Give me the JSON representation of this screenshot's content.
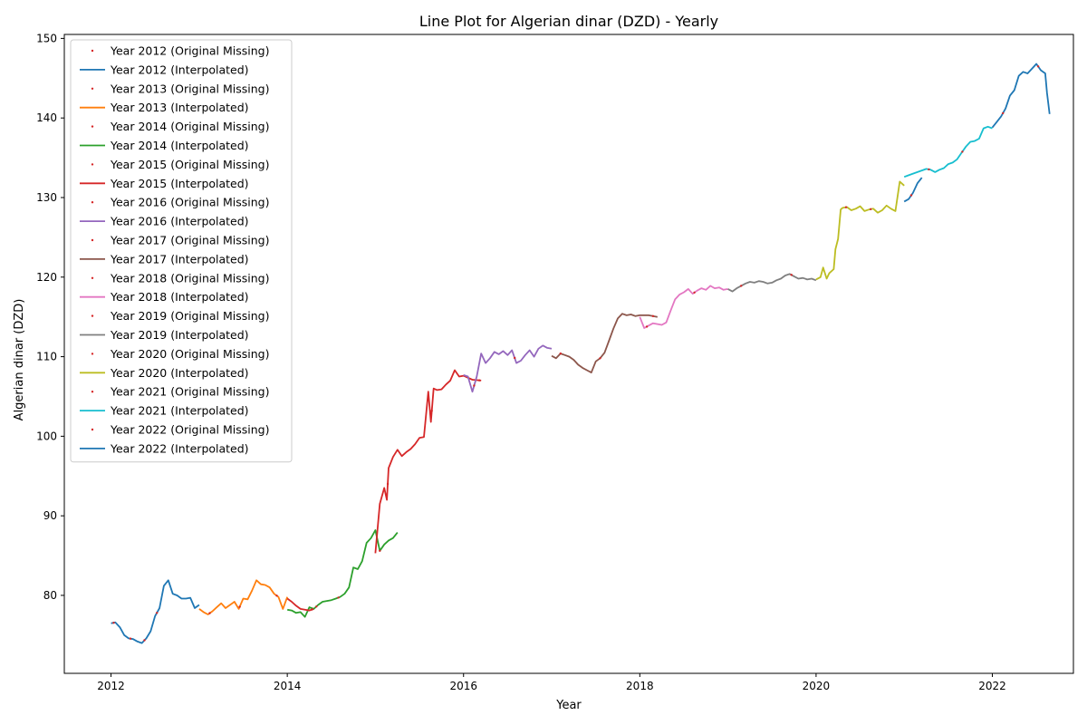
{
  "chart_data": {
    "type": "line",
    "title": "Line Plot for Algerian dinar (DZD) - Yearly",
    "xlabel": "Year",
    "ylabel": "Algerian dinar (DZD)",
    "xlim": [
      2011.47,
      2022.92
    ],
    "ylim": [
      70.2,
      150.5
    ],
    "xticks": [
      2012,
      2014,
      2016,
      2018,
      2020,
      2022
    ],
    "yticks": [
      80,
      90,
      100,
      110,
      120,
      130,
      140,
      150
    ],
    "legend_location": "upper-left",
    "missing_color": "#d62728",
    "series": [
      {
        "name": "Year 2012 (Interpolated)",
        "missing_label": "Year 2012 (Original Missing)",
        "color": "#1f77b4",
        "points": [
          [
            2012.0,
            76.5
          ],
          [
            2012.05,
            76.6
          ],
          [
            2012.1,
            76.0
          ],
          [
            2012.15,
            75.0
          ],
          [
            2012.2,
            74.6
          ],
          [
            2012.25,
            74.5
          ],
          [
            2012.3,
            74.2
          ],
          [
            2012.35,
            74.0
          ],
          [
            2012.4,
            74.6
          ],
          [
            2012.45,
            75.5
          ],
          [
            2012.5,
            77.4
          ],
          [
            2012.55,
            78.4
          ],
          [
            2012.6,
            81.2
          ],
          [
            2012.65,
            81.9
          ],
          [
            2012.7,
            80.2
          ],
          [
            2012.75,
            80.0
          ],
          [
            2012.8,
            79.6
          ],
          [
            2012.85,
            79.6
          ],
          [
            2012.9,
            79.7
          ],
          [
            2012.95,
            78.4
          ],
          [
            2013.0,
            78.8
          ]
        ],
        "missing_x": [
          2012.03,
          2012.22,
          2012.38,
          2012.52
        ]
      },
      {
        "name": "Year 2013 (Interpolated)",
        "missing_label": "Year 2013 (Original Missing)",
        "color": "#ff7f0e",
        "points": [
          [
            2013.0,
            78.3
          ],
          [
            2013.05,
            77.9
          ],
          [
            2013.1,
            77.6
          ],
          [
            2013.15,
            78.0
          ],
          [
            2013.2,
            78.5
          ],
          [
            2013.25,
            79.0
          ],
          [
            2013.3,
            78.4
          ],
          [
            2013.35,
            78.8
          ],
          [
            2013.4,
            79.2
          ],
          [
            2013.45,
            78.3
          ],
          [
            2013.5,
            79.6
          ],
          [
            2013.55,
            79.5
          ],
          [
            2013.6,
            80.6
          ],
          [
            2013.65,
            81.9
          ],
          [
            2013.7,
            81.4
          ],
          [
            2013.75,
            81.3
          ],
          [
            2013.8,
            81.0
          ],
          [
            2013.85,
            80.2
          ],
          [
            2013.9,
            79.8
          ],
          [
            2013.95,
            78.3
          ],
          [
            2014.0,
            79.8
          ]
        ],
        "missing_x": [
          2013.12,
          2013.46,
          2013.88
        ]
      },
      {
        "name": "Year 2014 (Interpolated)",
        "missing_label": "Year 2014 (Original Missing)",
        "color": "#2ca02c",
        "points": [
          [
            2014.0,
            78.2
          ],
          [
            2014.05,
            78.1
          ],
          [
            2014.1,
            77.8
          ],
          [
            2014.15,
            77.9
          ],
          [
            2014.2,
            77.3
          ],
          [
            2014.25,
            78.5
          ],
          [
            2014.3,
            78.3
          ],
          [
            2014.35,
            78.8
          ],
          [
            2014.4,
            79.2
          ],
          [
            2014.45,
            79.3
          ],
          [
            2014.5,
            79.4
          ],
          [
            2014.55,
            79.6
          ],
          [
            2014.6,
            79.8
          ],
          [
            2014.65,
            80.2
          ],
          [
            2014.7,
            81.0
          ],
          [
            2014.75,
            83.5
          ],
          [
            2014.8,
            83.3
          ],
          [
            2014.85,
            84.3
          ],
          [
            2014.9,
            86.6
          ],
          [
            2014.95,
            87.2
          ],
          [
            2015.0,
            88.2
          ],
          [
            2015.05,
            85.6
          ],
          [
            2015.1,
            86.4
          ],
          [
            2015.15,
            86.9
          ],
          [
            2015.2,
            87.2
          ],
          [
            2015.25,
            87.9
          ]
        ],
        "missing_x": [
          2014.33,
          2014.58,
          2015.05
        ]
      },
      {
        "name": "Year 2015 (Interpolated)",
        "missing_label": "Year 2015 (Original Missing)",
        "color": "#d62728",
        "points": [
          [
            2014.0,
            79.6
          ],
          [
            2014.05,
            79.2
          ],
          [
            2014.1,
            78.7
          ],
          [
            2014.15,
            78.3
          ],
          [
            2014.25,
            78.1
          ],
          [
            2014.3,
            78.3
          ],
          [
            2015.0,
            85.3
          ],
          [
            2015.05,
            91.5
          ],
          [
            2015.1,
            93.5
          ],
          [
            2015.13,
            92.0
          ],
          [
            2015.15,
            96.0
          ],
          [
            2015.2,
            97.4
          ],
          [
            2015.25,
            98.3
          ],
          [
            2015.3,
            97.5
          ],
          [
            2015.35,
            98.0
          ],
          [
            2015.4,
            98.4
          ],
          [
            2015.45,
            99.0
          ],
          [
            2015.5,
            99.8
          ],
          [
            2015.55,
            99.9
          ],
          [
            2015.6,
            105.6
          ],
          [
            2015.63,
            101.8
          ],
          [
            2015.66,
            106.0
          ],
          [
            2015.7,
            105.8
          ],
          [
            2015.75,
            105.9
          ],
          [
            2015.8,
            106.5
          ],
          [
            2015.85,
            107.0
          ],
          [
            2015.9,
            108.3
          ],
          [
            2015.95,
            107.5
          ],
          [
            2016.0,
            107.6
          ],
          [
            2016.1,
            107.1
          ],
          [
            2016.2,
            107.0
          ]
        ],
        "missing_x": [
          2014.28,
          2015.14,
          2015.64,
          2016.18
        ]
      },
      {
        "name": "Year 2016 (Interpolated)",
        "missing_label": "Year 2016 (Original Missing)",
        "color": "#9467bd",
        "points": [
          [
            2016.0,
            107.7
          ],
          [
            2016.05,
            107.5
          ],
          [
            2016.1,
            105.6
          ],
          [
            2016.15,
            107.5
          ],
          [
            2016.2,
            110.4
          ],
          [
            2016.25,
            109.2
          ],
          [
            2016.3,
            109.8
          ],
          [
            2016.35,
            110.6
          ],
          [
            2016.4,
            110.3
          ],
          [
            2016.45,
            110.7
          ],
          [
            2016.5,
            110.2
          ],
          [
            2016.55,
            110.8
          ],
          [
            2016.6,
            109.2
          ],
          [
            2016.65,
            109.5
          ],
          [
            2016.7,
            110.2
          ],
          [
            2016.75,
            110.8
          ],
          [
            2016.8,
            110.0
          ],
          [
            2016.85,
            111.0
          ],
          [
            2016.9,
            111.4
          ],
          [
            2016.95,
            111.1
          ],
          [
            2017.0,
            111.0
          ]
        ],
        "missing_x": [
          2016.12,
          2016.58
        ]
      },
      {
        "name": "Year 2017 (Interpolated)",
        "missing_label": "Year 2017 (Original Missing)",
        "color": "#8c564b",
        "points": [
          [
            2017.0,
            110.1
          ],
          [
            2017.05,
            109.8
          ],
          [
            2017.1,
            110.4
          ],
          [
            2017.15,
            110.2
          ],
          [
            2017.2,
            110.0
          ],
          [
            2017.25,
            109.6
          ],
          [
            2017.3,
            109.0
          ],
          [
            2017.35,
            108.6
          ],
          [
            2017.4,
            108.3
          ],
          [
            2017.45,
            108.0
          ],
          [
            2017.5,
            109.4
          ],
          [
            2017.55,
            109.8
          ],
          [
            2017.6,
            110.5
          ],
          [
            2017.65,
            112.0
          ],
          [
            2017.7,
            113.5
          ],
          [
            2017.75,
            114.8
          ],
          [
            2017.8,
            115.4
          ],
          [
            2017.85,
            115.2
          ],
          [
            2017.9,
            115.3
          ],
          [
            2017.95,
            115.1
          ],
          [
            2018.0,
            115.2
          ],
          [
            2018.1,
            115.2
          ],
          [
            2018.2,
            115.0
          ]
        ],
        "missing_x": [
          2017.1,
          2017.55,
          2018.15
        ]
      },
      {
        "name": "Year 2018 (Interpolated)",
        "missing_label": "Year 2018 (Original Missing)",
        "color": "#e377c2",
        "points": [
          [
            2018.0,
            115.0
          ],
          [
            2018.05,
            113.6
          ],
          [
            2018.1,
            113.9
          ],
          [
            2018.15,
            114.2
          ],
          [
            2018.2,
            114.1
          ],
          [
            2018.25,
            114.0
          ],
          [
            2018.3,
            114.3
          ],
          [
            2018.35,
            115.8
          ],
          [
            2018.4,
            117.2
          ],
          [
            2018.45,
            117.8
          ],
          [
            2018.5,
            118.1
          ],
          [
            2018.55,
            118.5
          ],
          [
            2018.6,
            117.9
          ],
          [
            2018.65,
            118.3
          ],
          [
            2018.7,
            118.6
          ],
          [
            2018.75,
            118.4
          ],
          [
            2018.8,
            118.9
          ],
          [
            2018.85,
            118.6
          ],
          [
            2018.9,
            118.7
          ],
          [
            2018.95,
            118.4
          ],
          [
            2019.0,
            118.5
          ]
        ],
        "missing_x": [
          2018.08,
          2018.62
        ]
      },
      {
        "name": "Year 2019 (Interpolated)",
        "missing_label": "Year 2019 (Original Missing)",
        "color": "#7f7f7f",
        "points": [
          [
            2019.0,
            118.5
          ],
          [
            2019.05,
            118.2
          ],
          [
            2019.1,
            118.6
          ],
          [
            2019.15,
            118.9
          ],
          [
            2019.2,
            119.2
          ],
          [
            2019.25,
            119.4
          ],
          [
            2019.3,
            119.3
          ],
          [
            2019.35,
            119.5
          ],
          [
            2019.4,
            119.4
          ],
          [
            2019.45,
            119.2
          ],
          [
            2019.5,
            119.3
          ],
          [
            2019.55,
            119.6
          ],
          [
            2019.6,
            119.8
          ],
          [
            2019.65,
            120.2
          ],
          [
            2019.7,
            120.4
          ],
          [
            2019.75,
            120.1
          ],
          [
            2019.8,
            119.8
          ],
          [
            2019.85,
            119.9
          ],
          [
            2019.9,
            119.7
          ],
          [
            2019.95,
            119.8
          ],
          [
            2020.0,
            119.6
          ]
        ],
        "missing_x": [
          2019.15,
          2019.72
        ]
      },
      {
        "name": "Year 2020 (Interpolated)",
        "missing_label": "Year 2020 (Original Missing)",
        "color": "#bcbd22",
        "points": [
          [
            2020.0,
            119.7
          ],
          [
            2020.05,
            120.0
          ],
          [
            2020.08,
            121.2
          ],
          [
            2020.12,
            119.8
          ],
          [
            2020.15,
            120.5
          ],
          [
            2020.2,
            121.0
          ],
          [
            2020.22,
            123.5
          ],
          [
            2020.25,
            124.8
          ],
          [
            2020.28,
            128.5
          ],
          [
            2020.3,
            128.7
          ],
          [
            2020.35,
            128.8
          ],
          [
            2020.4,
            128.4
          ],
          [
            2020.45,
            128.6
          ],
          [
            2020.5,
            128.9
          ],
          [
            2020.55,
            128.3
          ],
          [
            2020.6,
            128.5
          ],
          [
            2020.65,
            128.6
          ],
          [
            2020.7,
            128.1
          ],
          [
            2020.75,
            128.4
          ],
          [
            2020.8,
            129.0
          ],
          [
            2020.85,
            128.6
          ],
          [
            2020.9,
            128.3
          ],
          [
            2020.95,
            132.0
          ],
          [
            2021.0,
            131.5
          ]
        ],
        "missing_x": [
          2020.34,
          2020.62
        ]
      },
      {
        "name": "Year 2021 (Interpolated)",
        "missing_label": "Year 2021 (Original Missing)",
        "color": "#17becf",
        "points": [
          [
            2021.0,
            132.6
          ],
          [
            2021.05,
            132.8
          ],
          [
            2021.1,
            133.0
          ],
          [
            2021.15,
            133.2
          ],
          [
            2021.2,
            133.4
          ],
          [
            2021.25,
            133.6
          ],
          [
            2021.3,
            133.5
          ],
          [
            2021.35,
            133.2
          ],
          [
            2021.4,
            133.5
          ],
          [
            2021.45,
            133.7
          ],
          [
            2021.5,
            134.2
          ],
          [
            2021.55,
            134.4
          ],
          [
            2021.6,
            134.8
          ],
          [
            2021.65,
            135.6
          ],
          [
            2021.7,
            136.4
          ],
          [
            2021.75,
            137.0
          ],
          [
            2021.8,
            137.1
          ],
          [
            2021.85,
            137.4
          ],
          [
            2021.9,
            138.7
          ],
          [
            2021.95,
            138.9
          ],
          [
            2022.0,
            138.7
          ]
        ],
        "missing_x": [
          2021.28,
          2021.66
        ]
      },
      {
        "name": "Year 2022 (Interpolated)",
        "missing_label": "Year 2022 (Original Missing)",
        "color": "#1f77b4",
        "points": [
          [
            2021.0,
            129.5
          ],
          [
            2021.05,
            129.8
          ],
          [
            2021.1,
            130.6
          ],
          [
            2021.15,
            131.8
          ],
          [
            2021.2,
            132.5
          ],
          [
            2022.0,
            138.8
          ],
          [
            2022.05,
            139.5
          ],
          [
            2022.1,
            140.2
          ],
          [
            2022.15,
            141.2
          ],
          [
            2022.2,
            142.8
          ],
          [
            2022.25,
            143.5
          ],
          [
            2022.3,
            145.3
          ],
          [
            2022.35,
            145.8
          ],
          [
            2022.4,
            145.6
          ],
          [
            2022.45,
            146.2
          ],
          [
            2022.5,
            146.8
          ],
          [
            2022.55,
            146.0
          ],
          [
            2022.6,
            145.6
          ],
          [
            2022.62,
            143.2
          ],
          [
            2022.65,
            140.5
          ]
        ],
        "missing_x": [
          2021.08,
          2022.12,
          2022.52
        ]
      }
    ]
  }
}
